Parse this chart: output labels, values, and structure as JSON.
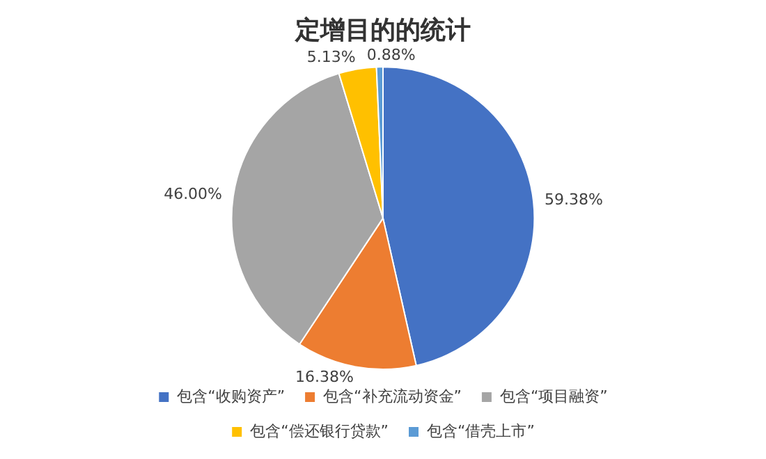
{
  "chart_data": {
    "type": "pie",
    "title": "定增目的的统计",
    "categories": [
      "包含“收购资产”",
      "包含“补充流动资金”",
      "包含“项目融资”",
      "包含“偿还银行贷款”",
      "包含“借壳上市”"
    ],
    "values": [
      59.38,
      16.38,
      46.0,
      5.13,
      0.88
    ],
    "value_labels": [
      "59.38%",
      "16.38%",
      "46.00%",
      "5.13%",
      "0.88%"
    ],
    "colors": [
      "#4472c4",
      "#ed7d31",
      "#a5a5a5",
      "#ffc000",
      "#5b9bd5"
    ],
    "legend": "bottom"
  }
}
